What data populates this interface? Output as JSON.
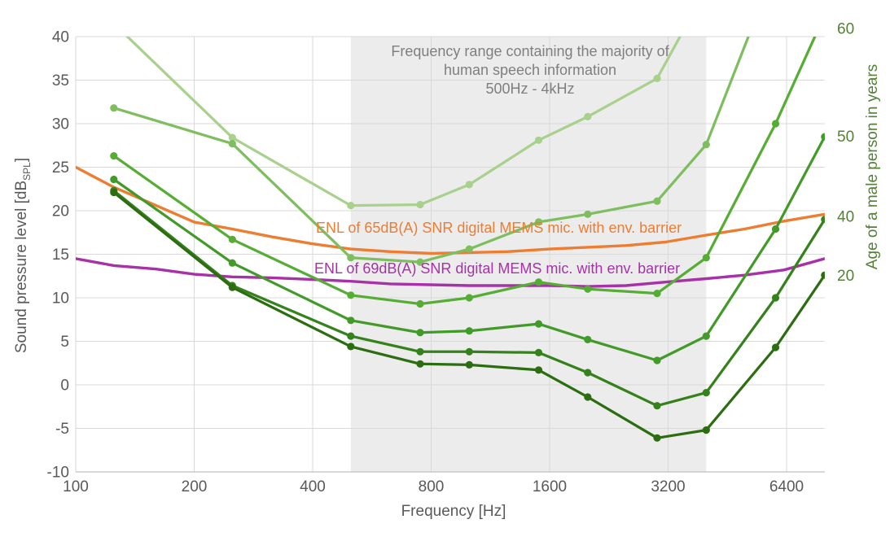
{
  "page": {
    "background": "#FFFFFF"
  },
  "chart_data": {
    "type": "line",
    "x_axis": {
      "title": "Frequency [Hz]",
      "scale": "log",
      "tick_values": [
        100,
        200,
        400,
        800,
        1600,
        3200,
        6400
      ],
      "min": 100,
      "max": 8000
    },
    "y_axis_left": {
      "title_main": "Sound pressure level [dB",
      "title_sub": "SPL",
      "title_close": "]",
      "ticks": [
        40,
        35,
        30,
        25,
        20,
        15,
        10,
        5,
        0,
        -5,
        -10
      ],
      "min": -10,
      "max": 40
    },
    "y_axis_right": {
      "title": "Age of a male person in years",
      "color": "#538135",
      "labels": [
        {
          "text": "60",
          "pos_db": 41.0
        },
        {
          "text": "50",
          "pos_db": 28.6
        },
        {
          "text": "40",
          "pos_db": 19.4
        },
        {
          "text": "20",
          "pos_db": 12.6
        }
      ]
    },
    "shaded_region": {
      "from_hz": 500,
      "to_hz": 4000,
      "fill": "#ECECEC",
      "annotation_color": "#7F7F7F",
      "annotation_lines": [
        "Frequency range containing the majority of",
        "human speech information",
        "500Hz - 4kHz"
      ]
    },
    "frequencies_hz": [
      125,
      250,
      500,
      750,
      1000,
      1500,
      2000,
      3000,
      4000,
      6000,
      8000
    ],
    "age_series": [
      {
        "name": "age-curve-top-unlabeled",
        "right_label": null,
        "color": "#A9D18E",
        "values": [
          41.5,
          28.4,
          20.6,
          20.7,
          23.0,
          28.1,
          30.8,
          35.2,
          45.5,
          null,
          null
        ]
      },
      {
        "name": "age-curve-second-unlabeled",
        "right_label": null,
        "color": "#7EBE5F",
        "values": [
          31.8,
          27.7,
          14.6,
          14.1,
          15.6,
          18.7,
          19.6,
          21.1,
          27.6,
          48.0,
          null
        ]
      },
      {
        "name": "age-curve-60",
        "right_label": "60",
        "color": "#56AD34",
        "values": [
          26.3,
          16.7,
          10.3,
          9.3,
          10.0,
          11.8,
          11.0,
          10.5,
          14.6,
          30.0,
          42.5
        ]
      },
      {
        "name": "age-curve-50",
        "right_label": "50",
        "color": "#429A28",
        "values": [
          23.6,
          14.0,
          7.4,
          6.0,
          6.2,
          7.0,
          5.2,
          2.8,
          5.6,
          17.9,
          28.5
        ]
      },
      {
        "name": "age-curve-40",
        "right_label": "40",
        "color": "#35821C",
        "values": [
          22.3,
          11.4,
          5.6,
          3.8,
          3.8,
          3.7,
          1.4,
          -2.4,
          -0.9,
          10.0,
          19.0
        ]
      },
      {
        "name": "age-curve-20",
        "right_label": "20",
        "color": "#2C6D12",
        "values": [
          22.1,
          11.2,
          4.4,
          2.4,
          2.3,
          1.7,
          -1.4,
          -6.1,
          -5.2,
          4.3,
          12.6
        ]
      }
    ],
    "mic_series": [
      {
        "name": "enl-65db-snr-mic",
        "label": "ENL of 65dB(A) SNR digital MEMS mic. with env. barrier",
        "color": "#ED7D31",
        "points": [
          [
            100,
            25.0
          ],
          [
            125,
            22.7
          ],
          [
            160,
            20.6
          ],
          [
            200,
            18.7
          ],
          [
            250,
            17.9
          ],
          [
            315,
            17.0
          ],
          [
            400,
            16.2
          ],
          [
            500,
            15.6
          ],
          [
            630,
            15.3
          ],
          [
            800,
            15.1
          ],
          [
            1000,
            15.2
          ],
          [
            1250,
            15.3
          ],
          [
            1600,
            15.6
          ],
          [
            2000,
            15.8
          ],
          [
            2500,
            16.0
          ],
          [
            3150,
            16.4
          ],
          [
            4000,
            17.2
          ],
          [
            5000,
            17.9
          ],
          [
            6300,
            18.8
          ],
          [
            8000,
            19.6
          ]
        ]
      },
      {
        "name": "enl-69db-snr-mic",
        "label": "ENL of 69dB(A) SNR digital MEMS mic. with env. barrier",
        "color": "#A831A8",
        "points": [
          [
            100,
            14.5
          ],
          [
            125,
            13.7
          ],
          [
            160,
            13.3
          ],
          [
            200,
            12.7
          ],
          [
            250,
            12.4
          ],
          [
            315,
            12.3
          ],
          [
            400,
            12.1
          ],
          [
            500,
            11.9
          ],
          [
            630,
            11.6
          ],
          [
            800,
            11.5
          ],
          [
            1000,
            11.4
          ],
          [
            1250,
            11.4
          ],
          [
            1600,
            11.4
          ],
          [
            2000,
            11.3
          ],
          [
            2500,
            11.4
          ],
          [
            3150,
            11.8
          ],
          [
            4000,
            12.2
          ],
          [
            5000,
            12.6
          ],
          [
            6300,
            13.2
          ],
          [
            8000,
            14.5
          ]
        ]
      }
    ],
    "grid": {
      "color": "#D9D9D9",
      "axis_line_color": "#BFBFBF",
      "tick_text_color": "#595959"
    }
  }
}
